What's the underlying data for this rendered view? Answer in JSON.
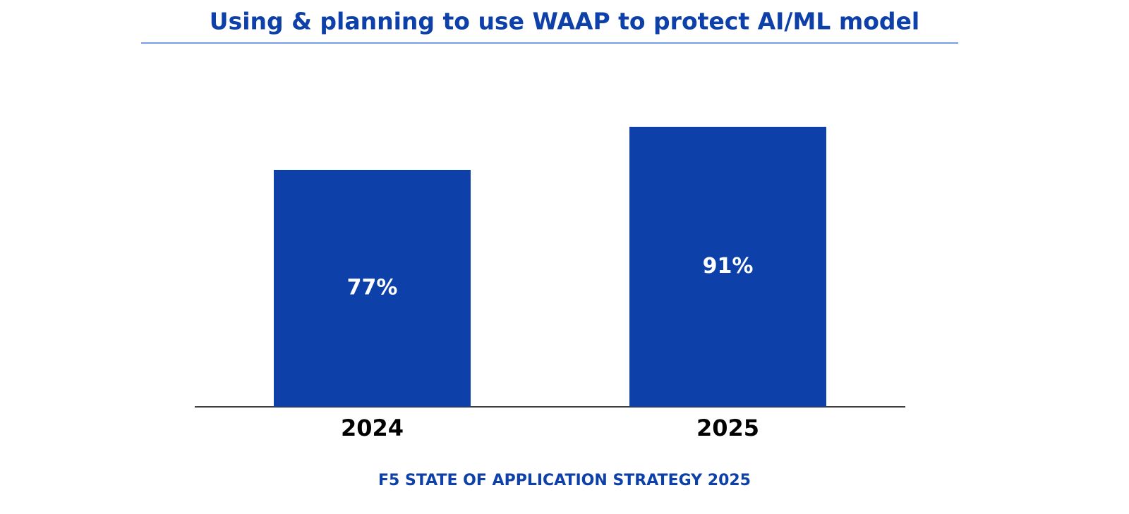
{
  "chart_data": {
    "type": "bar",
    "title": "Using & planning to use WAAP to protect AI/ML model",
    "categories": [
      "2024",
      "2025"
    ],
    "values": [
      77,
      91
    ],
    "value_labels": [
      "77%",
      "91%"
    ],
    "color": "#0e40aa",
    "source": "F5 STATE OF APPLICATION STRATEGY 2025"
  }
}
